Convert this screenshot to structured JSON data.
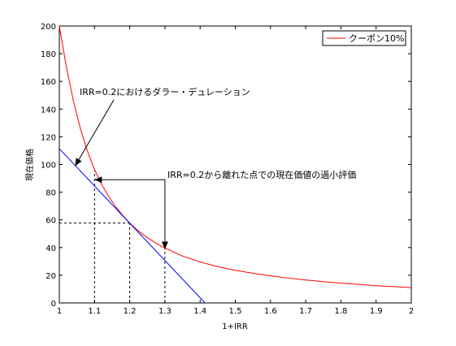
{
  "chart_data": {
    "type": "line",
    "title": "",
    "xlabel": "1+IRR",
    "ylabel": "現在価格",
    "xlim": [
      1,
      2
    ],
    "ylim": [
      0,
      200
    ],
    "xticks": [
      "1",
      "1.1",
      "1.2",
      "1.3",
      "1.4",
      "1.5",
      "1.6",
      "1.7",
      "1.8",
      "1.9",
      "2"
    ],
    "yticks": [
      "0",
      "20",
      "40",
      "60",
      "80",
      "100",
      "120",
      "140",
      "160",
      "180",
      "200"
    ],
    "grid": false,
    "legend": {
      "position": "top-right",
      "entries": [
        "クーポン10%"
      ]
    },
    "series": [
      {
        "name": "クーポン10%",
        "color": "#ff0000",
        "x": [
          1.0,
          1.02,
          1.04,
          1.06,
          1.08,
          1.1,
          1.12,
          1.14,
          1.16,
          1.18,
          1.2,
          1.22,
          1.24,
          1.26,
          1.28,
          1.3,
          1.35,
          1.4,
          1.45,
          1.5,
          1.55,
          1.6,
          1.65,
          1.7,
          1.75,
          1.8,
          1.85,
          1.9,
          1.95,
          2.0
        ],
        "y": [
          200.0,
          170.4,
          145.8,
          125.7,
          109.5,
          96.2,
          85.7,
          77.0,
          69.5,
          63.2,
          57.7,
          53.0,
          49.0,
          45.5,
          42.4,
          39.6,
          33.9,
          29.6,
          26.2,
          23.6,
          21.4,
          19.6,
          18.0,
          16.6,
          15.4,
          14.3,
          13.4,
          12.5,
          11.8,
          11.1
        ]
      },
      {
        "name": "",
        "color": "#0000ff",
        "x": [
          1.0,
          1.414
        ],
        "y": [
          111.4,
          0
        ]
      }
    ],
    "reference_lines": [
      {
        "from": [
          1.0,
          57.7
        ],
        "to": [
          1.2,
          57.7
        ]
      },
      {
        "from": [
          1.1,
          0
        ],
        "to": [
          1.1,
          96.2
        ]
      },
      {
        "from": [
          1.2,
          0
        ],
        "to": [
          1.2,
          57.7
        ]
      },
      {
        "from": [
          1.3,
          0
        ],
        "to": [
          1.3,
          39.6
        ]
      }
    ],
    "annotations": [
      {
        "text": "IRR=0.2におけるダラー・デュレーション",
        "arrow_to": [
          1.045,
          99
        ]
      },
      {
        "text": "IRR=0.2から離れた点での現在価値の過小評価",
        "arrow_to_left": [
          1.1,
          89
        ],
        "arrow_to_down": [
          1.3,
          39
        ]
      }
    ]
  }
}
